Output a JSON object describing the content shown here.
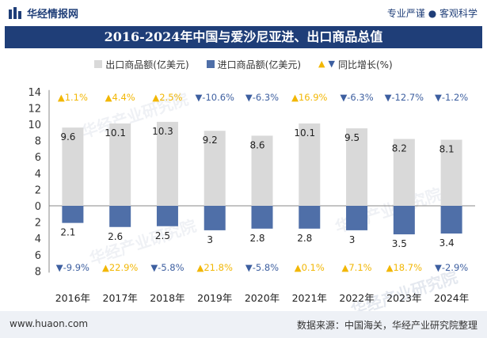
{
  "header": {
    "brand": "华经情报网",
    "tagline": "专业严谨 ● 客观科学"
  },
  "title": "2016-2024年中国与爱沙尼亚进、出口商品总值",
  "legend": {
    "export_label": "出口商品额(亿美元)",
    "import_label": "进口商品额(亿美元)",
    "yoy_label": "同比增长(%)"
  },
  "watermark": "华经产业研究院",
  "chart_data": {
    "type": "bar",
    "categories": [
      "2016年",
      "2017年",
      "2018年",
      "2019年",
      "2020年",
      "2021年",
      "2022年",
      "2023年",
      "2024年"
    ],
    "series": [
      {
        "name": "出口商品额(亿美元)",
        "values": [
          9.6,
          10.1,
          10.3,
          9.2,
          8.6,
          10.1,
          9.5,
          8.2,
          8.1
        ],
        "color": "#d9d9d9"
      },
      {
        "name": "进口商品额(亿美元)",
        "values": [
          2.1,
          2.6,
          2.5,
          3,
          2.8,
          2.8,
          3,
          3.5,
          3.4
        ],
        "color": "#4f6fa8"
      }
    ],
    "export_yoy": [
      "1.1%",
      "4.4%",
      "2.5%",
      "-10.6%",
      "-6.3%",
      "16.9%",
      "-6.3%",
      "-12.7%",
      "-1.2%"
    ],
    "import_yoy": [
      "-9.9%",
      "22.9%",
      "-5.8%",
      "21.8%",
      "-5.8%",
      "0.1%",
      "7.1%",
      "18.7%",
      "-2.9%"
    ],
    "yaxis_ticks_top": [
      14,
      12,
      10,
      8,
      6,
      4,
      2,
      0
    ],
    "yaxis_ticks_bottom": [
      2,
      4,
      6,
      8
    ],
    "ylim": [
      -8,
      14
    ],
    "colors": {
      "up": "#f2b705",
      "down": "#3d5fa0"
    }
  },
  "footer": {
    "website": "www.huaon.com",
    "source": "数据来源：中国海关，华经产业研究院整理"
  }
}
